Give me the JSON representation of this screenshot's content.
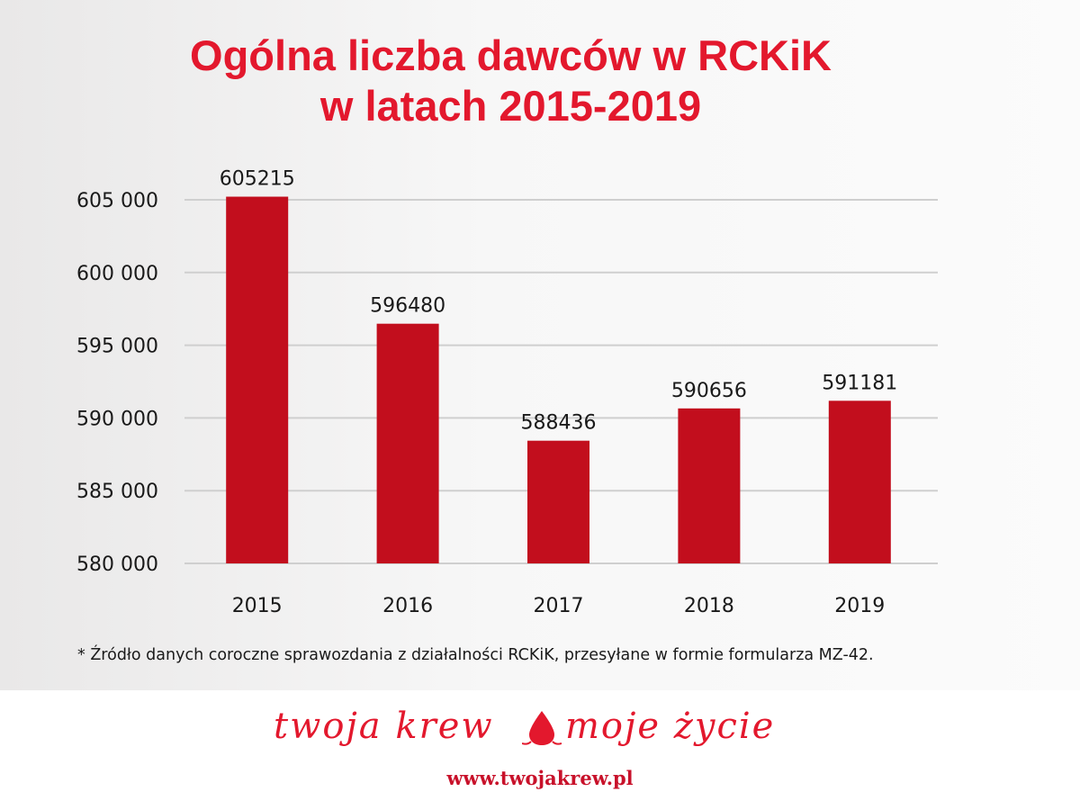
{
  "chart_data": {
    "type": "bar",
    "title_line1": "Ogólna liczba dawców w RCKiK",
    "title_line2": "w latach 2015-2019",
    "categories": [
      "2015",
      "2016",
      "2017",
      "2018",
      "2019"
    ],
    "values": [
      605215,
      596480,
      588436,
      590656,
      591181
    ],
    "value_labels": [
      "605215",
      "596480",
      "588436",
      "590656",
      "591181"
    ],
    "ylim": [
      580000,
      605000
    ],
    "yticks": [
      605000,
      600000,
      595000,
      590000,
      585000,
      580000
    ],
    "ytick_labels": [
      "605 000",
      "600 000",
      "595 000",
      "590 000",
      "585 000",
      "580 000"
    ],
    "grid": true,
    "bar_color": "#c20e1d",
    "title_color": "#e3182d"
  },
  "footnote": "* Źródło danych coroczne sprawozdania z działalności RCKiK, przesyłane w formie formularza MZ-42.",
  "logo": {
    "text_left": "twoja krew",
    "text_right": "moje życie",
    "icon": "blood-drop-icon",
    "color": "#e3182d"
  },
  "website": "www.twojakrew.pl"
}
